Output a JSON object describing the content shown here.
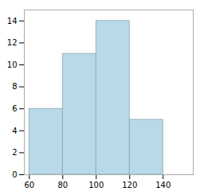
{
  "chart_data": {
    "type": "histogram",
    "bins": [
      60,
      80,
      100,
      120,
      140
    ],
    "values": [
      6,
      11,
      14,
      5
    ],
    "color": "#b8d9e8",
    "xlim": [
      57,
      158
    ],
    "ylim": [
      0,
      15
    ],
    "xticks": [
      60,
      80,
      100,
      120,
      140
    ],
    "yticks": [
      0,
      2,
      4,
      6,
      8,
      10,
      12,
      14
    ]
  }
}
